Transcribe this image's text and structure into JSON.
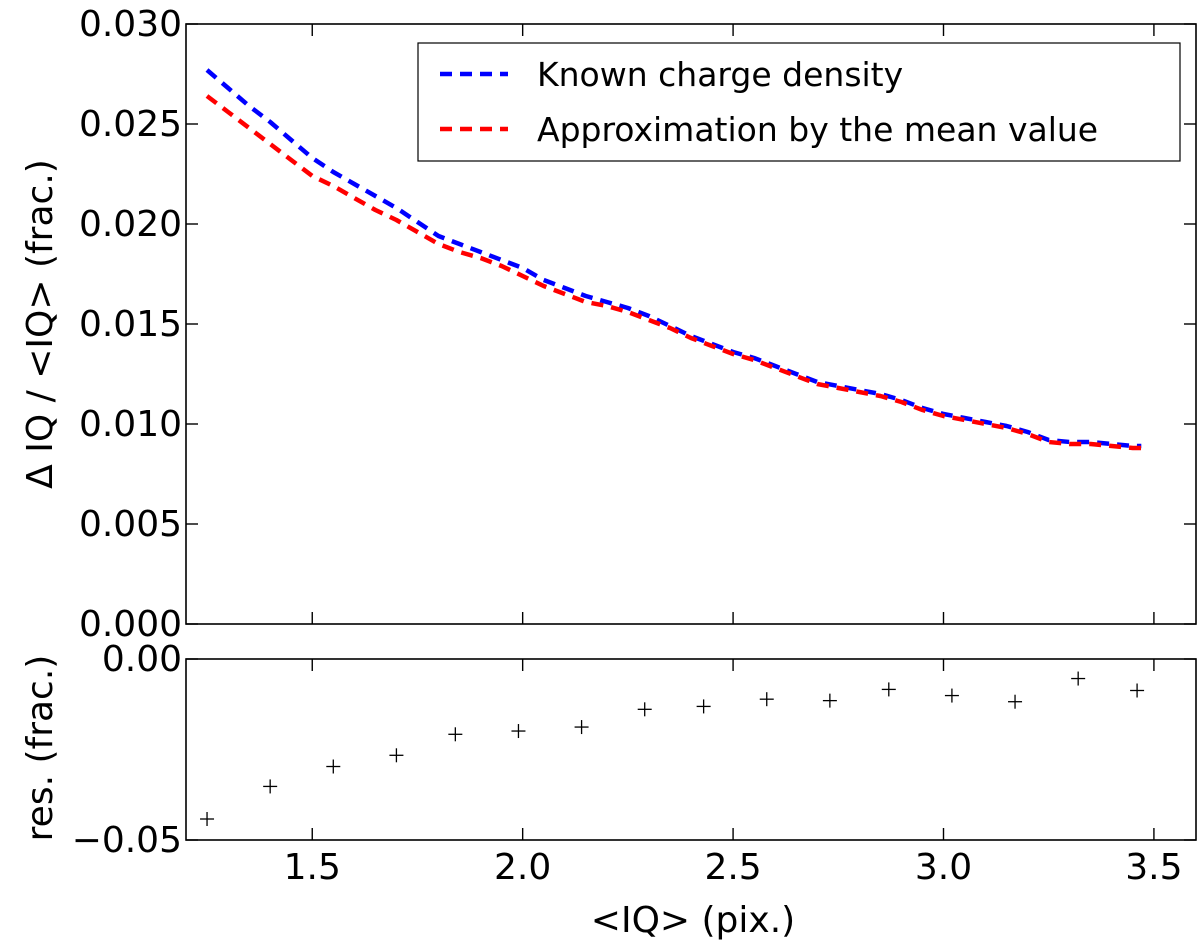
{
  "chart_data": [
    {
      "type": "line",
      "panel": "main",
      "xlabel": "",
      "ylabel": "Δ IQ / <IQ> (frac.)",
      "xlim": [
        1.2,
        3.6
      ],
      "ylim": [
        0.0,
        0.03
      ],
      "yticks": [
        0.0,
        0.005,
        0.01,
        0.015,
        0.02,
        0.025,
        0.03
      ],
      "ytick_labels": [
        "0.000",
        "0.005",
        "0.010",
        "0.015",
        "0.020",
        "0.025",
        "0.030"
      ],
      "legend_position": "top-right",
      "series": [
        {
          "name": "Known charge density",
          "color": "#0000ff",
          "style": "dashed",
          "x": [
            1.25,
            1.3,
            1.35,
            1.4,
            1.45,
            1.5,
            1.55,
            1.6,
            1.65,
            1.7,
            1.75,
            1.8,
            1.85,
            1.9,
            1.95,
            2.0,
            2.05,
            2.1,
            2.15,
            2.2,
            2.25,
            2.3,
            2.35,
            2.4,
            2.45,
            2.5,
            2.55,
            2.6,
            2.65,
            2.7,
            2.75,
            2.8,
            2.85,
            2.9,
            2.95,
            3.0,
            3.05,
            3.1,
            3.15,
            3.2,
            3.25,
            3.3,
            3.35,
            3.4,
            3.45,
            3.47
          ],
          "values": [
            0.0277,
            0.0268,
            0.0259,
            0.0251,
            0.0242,
            0.0233,
            0.0226,
            0.022,
            0.0214,
            0.0208,
            0.0201,
            0.0194,
            0.019,
            0.0186,
            0.0182,
            0.0178,
            0.0172,
            0.0168,
            0.0164,
            0.0161,
            0.0158,
            0.0154,
            0.0149,
            0.0144,
            0.014,
            0.0136,
            0.0133,
            0.0129,
            0.0125,
            0.0121,
            0.0119,
            0.0117,
            0.0115,
            0.0112,
            0.0108,
            0.0105,
            0.0103,
            0.0101,
            0.0099,
            0.0096,
            0.0092,
            0.0091,
            0.0091,
            0.009,
            0.0089,
            0.0089
          ]
        },
        {
          "name": "Approximation by the mean value",
          "color": "#ff0000",
          "style": "dashed",
          "x": [
            1.25,
            1.3,
            1.35,
            1.4,
            1.45,
            1.5,
            1.55,
            1.6,
            1.65,
            1.7,
            1.75,
            1.8,
            1.85,
            1.9,
            1.95,
            2.0,
            2.05,
            2.1,
            2.15,
            2.2,
            2.25,
            2.3,
            2.35,
            2.4,
            2.45,
            2.5,
            2.55,
            2.6,
            2.65,
            2.7,
            2.75,
            2.8,
            2.85,
            2.9,
            2.95,
            3.0,
            3.05,
            3.1,
            3.15,
            3.2,
            3.25,
            3.3,
            3.35,
            3.4,
            3.45,
            3.47
          ],
          "values": [
            0.0264,
            0.0256,
            0.0248,
            0.024,
            0.0232,
            0.0224,
            0.0219,
            0.0213,
            0.0207,
            0.0202,
            0.0196,
            0.019,
            0.0186,
            0.0183,
            0.0179,
            0.0174,
            0.0169,
            0.0165,
            0.0161,
            0.0159,
            0.0156,
            0.0152,
            0.0148,
            0.0143,
            0.0139,
            0.0135,
            0.0132,
            0.0128,
            0.0124,
            0.012,
            0.0118,
            0.0116,
            0.0114,
            0.0111,
            0.0107,
            0.0104,
            0.0102,
            0.01,
            0.0098,
            0.0095,
            0.0091,
            0.009,
            0.009,
            0.0089,
            0.0088,
            0.0088
          ]
        }
      ]
    },
    {
      "type": "scatter",
      "panel": "residuals",
      "xlabel": "<IQ> (pix.)",
      "ylabel": "res. (frac.)",
      "xlim": [
        1.2,
        3.6
      ],
      "ylim": [
        -0.05,
        0.0
      ],
      "xticks": [
        1.5,
        2.0,
        2.5,
        3.0,
        3.5
      ],
      "xtick_labels": [
        "1.5",
        "2.0",
        "2.5",
        "3.0",
        "3.5"
      ],
      "yticks": [
        -0.05,
        0.0
      ],
      "ytick_labels": [
        "−0.05",
        "0.00"
      ],
      "marker": "+",
      "color": "#000000",
      "x": [
        1.25,
        1.4,
        1.55,
        1.7,
        1.84,
        1.99,
        2.14,
        2.29,
        2.43,
        2.58,
        2.73,
        2.87,
        3.02,
        3.17,
        3.32,
        3.46
      ],
      "values": [
        -0.0442,
        -0.0352,
        -0.0297,
        -0.0266,
        -0.0208,
        -0.0199,
        -0.0188,
        -0.0139,
        -0.0131,
        -0.0111,
        -0.0115,
        -0.0084,
        -0.0101,
        -0.0118,
        -0.0054,
        -0.0087
      ]
    }
  ]
}
